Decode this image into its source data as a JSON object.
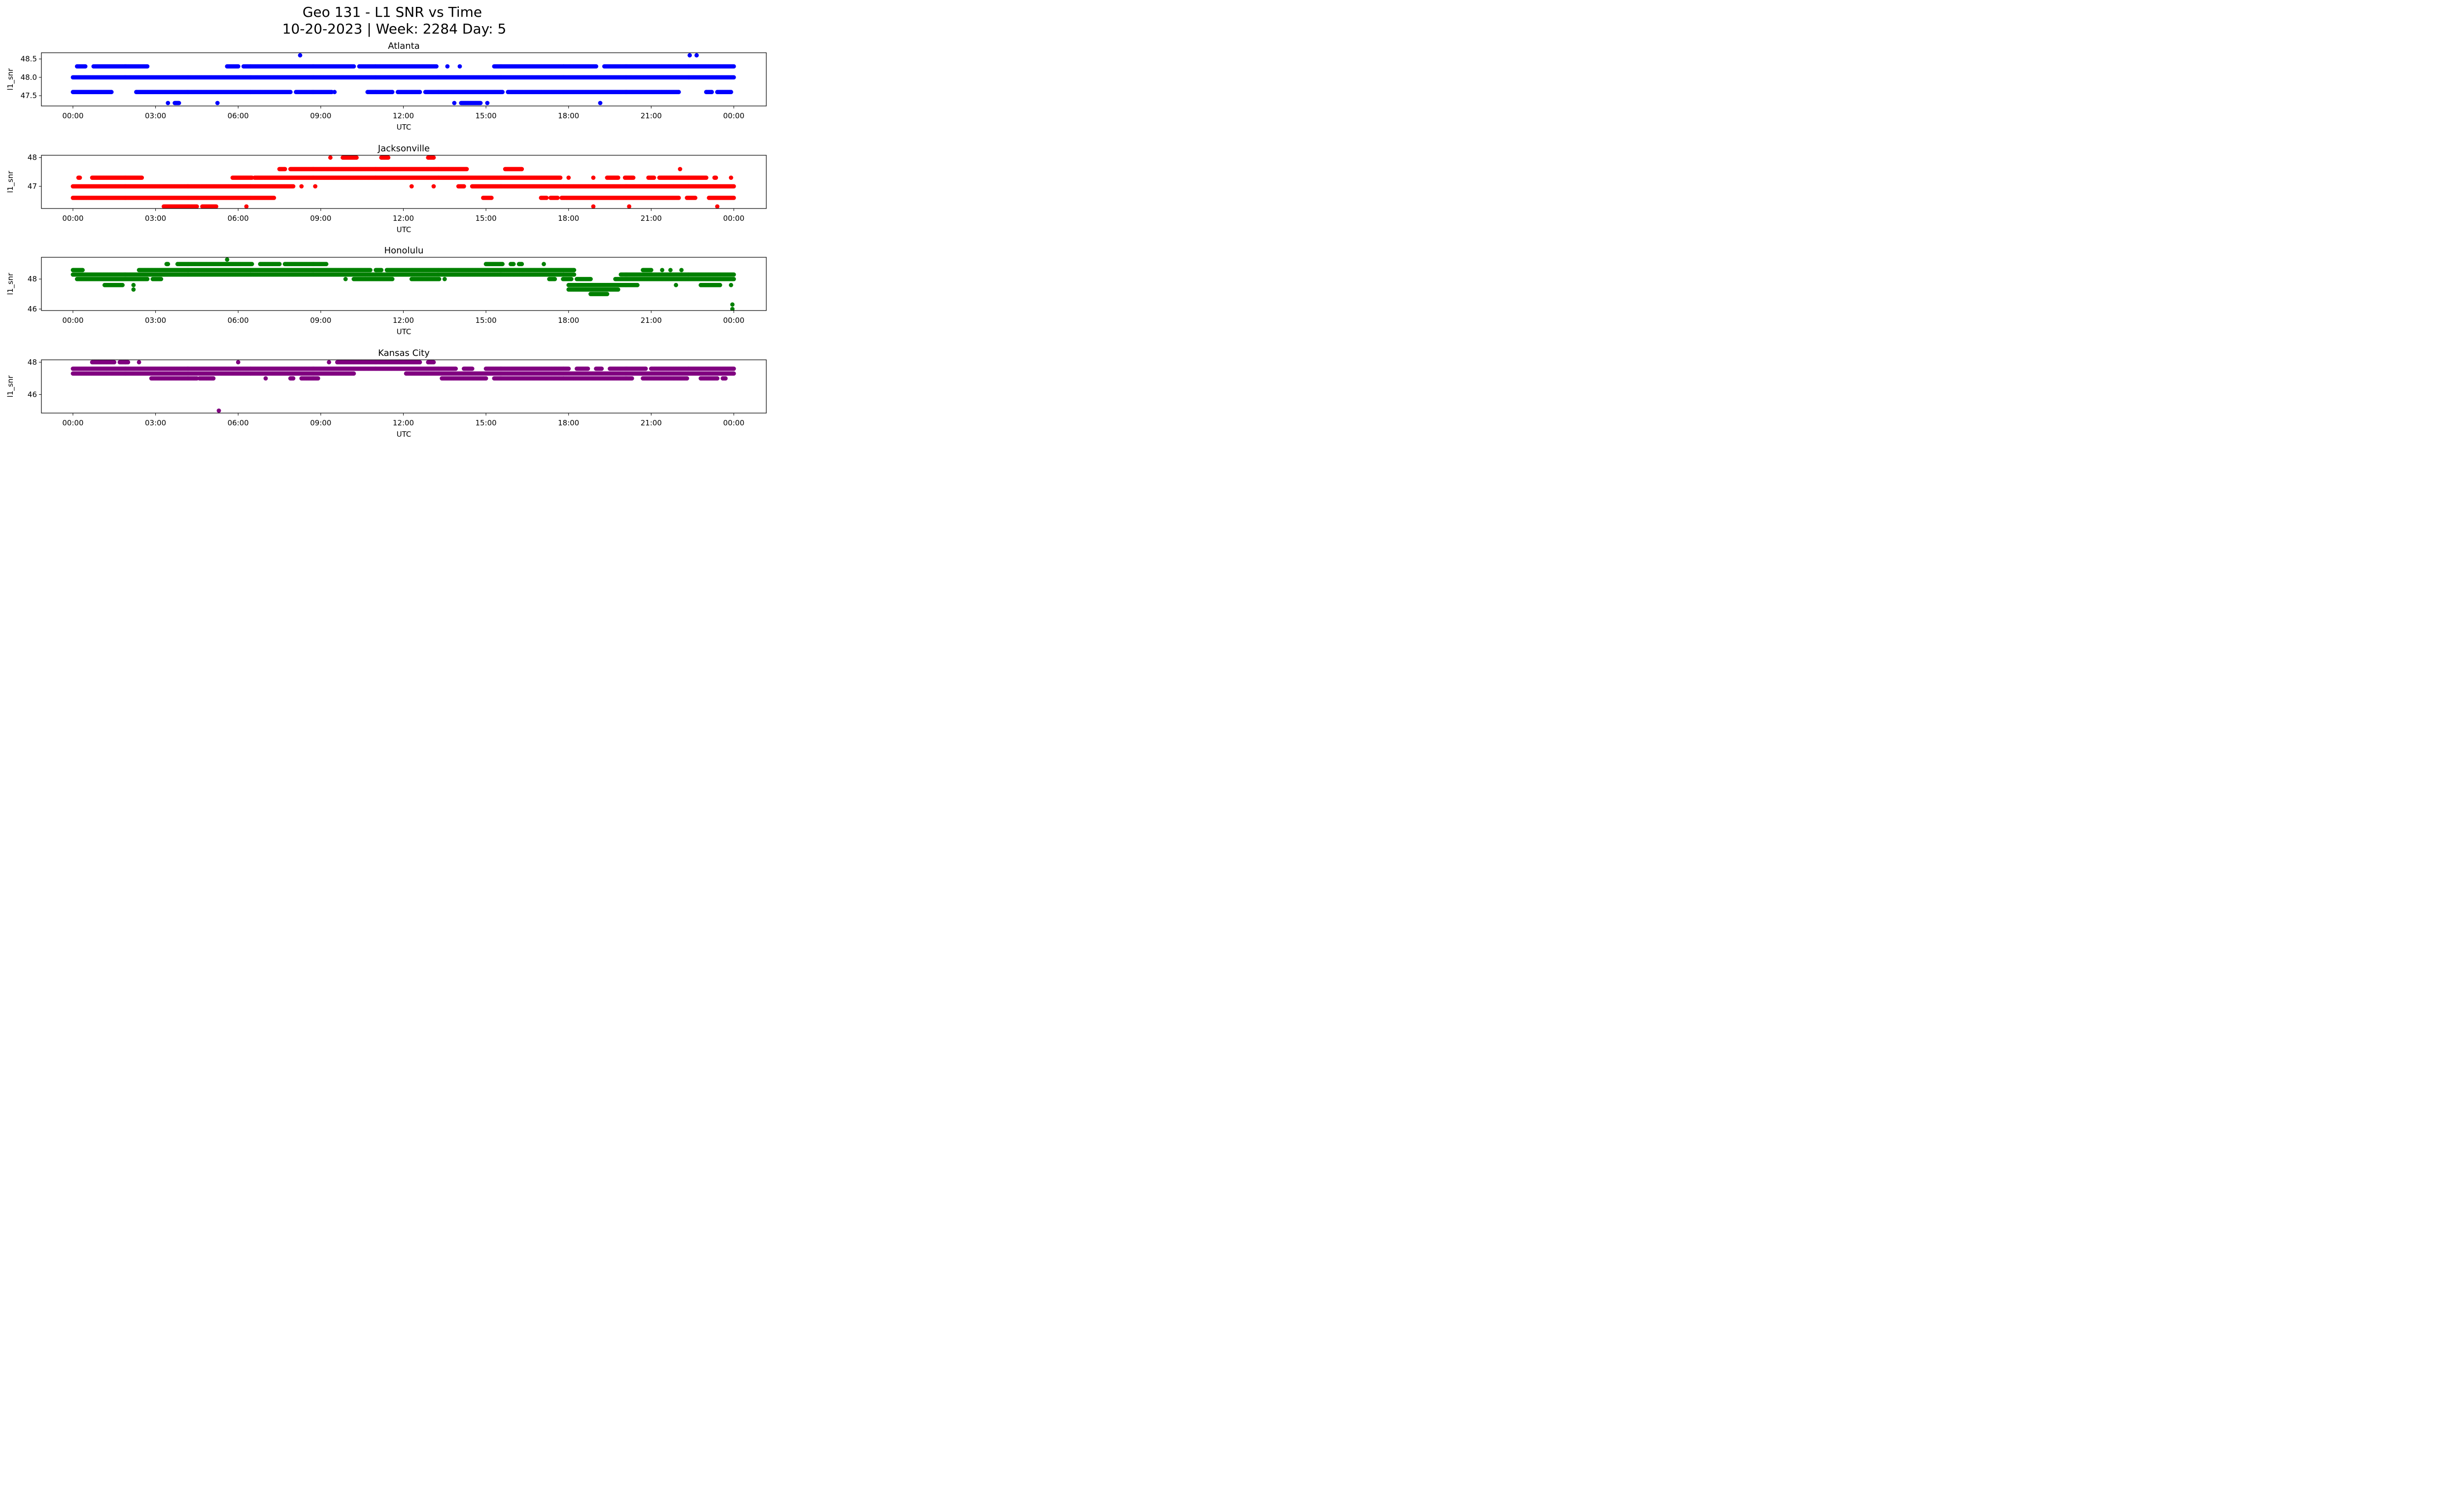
{
  "figure": {
    "title_line1": "Geo 131 - L1 SNR vs Time",
    "title_line2": "10-20-2023 | Week: 2284 Day: 5"
  },
  "chart_data": [
    {
      "type": "scatter",
      "title": "Atlanta",
      "xlabel": "UTC",
      "ylabel": "l1_snr",
      "color": "#0000ff",
      "xlim": [
        0,
        24
      ],
      "ylim": [
        47.22,
        48.67
      ],
      "x_ticks": [
        "00:00",
        "03:00",
        "06:00",
        "09:00",
        "12:00",
        "15:00",
        "18:00",
        "21:00",
        "00:00"
      ],
      "y_ticks": [
        47.5,
        48.0,
        48.5
      ],
      "y_tick_labels": [
        "47.5",
        "48.0",
        "48.5"
      ],
      "series": [
        {
          "y": 48.0,
          "ranges": [
            [
              0.0,
              24.0
            ]
          ]
        },
        {
          "y": 48.3,
          "ranges": [
            [
              0.15,
              0.45
            ],
            [
              0.75,
              2.7
            ],
            [
              5.6,
              6.0
            ],
            [
              6.2,
              10.2
            ],
            [
              10.4,
              13.2
            ],
            [
              13.6,
              13.6
            ],
            [
              14.05,
              14.05
            ],
            [
              15.3,
              19.0
            ],
            [
              19.3,
              24.0
            ]
          ]
        },
        {
          "y": 47.6,
          "ranges": [
            [
              0.0,
              1.4
            ],
            [
              2.3,
              7.9
            ],
            [
              8.1,
              9.4
            ],
            [
              9.5,
              9.5
            ],
            [
              10.7,
              11.6
            ],
            [
              11.8,
              12.6
            ],
            [
              12.8,
              15.6
            ],
            [
              15.8,
              22.0
            ],
            [
              23.0,
              23.2
            ],
            [
              23.4,
              23.9
            ]
          ]
        },
        {
          "y": 47.3,
          "ranges": [
            [
              3.45,
              3.45
            ],
            [
              3.7,
              3.85
            ],
            [
              5.25,
              5.25
            ],
            [
              13.85,
              13.85
            ],
            [
              14.1,
              14.8
            ],
            [
              15.05,
              15.05
            ],
            [
              19.15,
              19.15
            ]
          ]
        },
        {
          "y": 48.6,
          "ranges": [
            [
              8.25,
              8.25
            ],
            [
              22.4,
              22.4
            ],
            [
              22.65,
              22.65
            ]
          ]
        }
      ]
    },
    {
      "type": "scatter",
      "title": "Jacksonville",
      "xlabel": "UTC",
      "ylabel": "l1_snr",
      "color": "#ff0000",
      "xlim": [
        0,
        24
      ],
      "ylim": [
        46.23,
        48.08
      ],
      "x_ticks": [
        "00:00",
        "03:00",
        "06:00",
        "09:00",
        "12:00",
        "15:00",
        "18:00",
        "21:00",
        "00:00"
      ],
      "y_ticks": [
        47.0,
        48.0
      ],
      "y_tick_labels": [
        "47",
        "48"
      ],
      "series": [
        {
          "y": 47.0,
          "ranges": [
            [
              0.0,
              8.0
            ],
            [
              8.3,
              8.3
            ],
            [
              8.8,
              8.8
            ],
            [
              12.3,
              12.3
            ],
            [
              13.1,
              13.1
            ],
            [
              14.0,
              14.2
            ],
            [
              14.5,
              24.0
            ]
          ]
        },
        {
          "y": 46.6,
          "ranges": [
            [
              0.0,
              7.3
            ],
            [
              14.9,
              15.2
            ],
            [
              17.0,
              17.2
            ],
            [
              17.35,
              17.6
            ],
            [
              17.75,
              22.0
            ],
            [
              22.3,
              22.6
            ],
            [
              23.1,
              24.0
            ]
          ]
        },
        {
          "y": 47.3,
          "ranges": [
            [
              0.2,
              0.25
            ],
            [
              0.7,
              2.5
            ],
            [
              5.8,
              6.5
            ],
            [
              6.6,
              17.7
            ],
            [
              18.0,
              18.0
            ],
            [
              18.9,
              18.9
            ],
            [
              19.4,
              19.8
            ],
            [
              20.05,
              20.35
            ],
            [
              20.9,
              21.1
            ],
            [
              21.3,
              23.0
            ],
            [
              23.3,
              23.35
            ],
            [
              23.9,
              23.9
            ]
          ]
        },
        {
          "y": 47.6,
          "ranges": [
            [
              7.5,
              7.7
            ],
            [
              7.9,
              14.3
            ],
            [
              15.7,
              16.3
            ],
            [
              22.05,
              22.05
            ]
          ]
        },
        {
          "y": 46.3,
          "ranges": [
            [
              3.3,
              4.5
            ],
            [
              4.7,
              5.2
            ],
            [
              6.3,
              6.3
            ],
            [
              18.9,
              18.9
            ],
            [
              20.2,
              20.2
            ],
            [
              23.4,
              23.4
            ]
          ]
        },
        {
          "y": 48.0,
          "ranges": [
            [
              9.35,
              9.35
            ],
            [
              9.8,
              10.3
            ],
            [
              11.2,
              11.45
            ],
            [
              12.9,
              13.1
            ]
          ]
        }
      ]
    },
    {
      "type": "scatter",
      "title": "Honolulu",
      "xlabel": "UTC",
      "ylabel": "l1_snr",
      "color": "#008000",
      "xlim": [
        0,
        24
      ],
      "ylim": [
        45.9,
        49.45
      ],
      "x_ticks": [
        "00:00",
        "03:00",
        "06:00",
        "09:00",
        "12:00",
        "15:00",
        "18:00",
        "21:00",
        "00:00"
      ],
      "y_ticks": [
        46.0,
        48.0
      ],
      "y_tick_labels": [
        "46",
        "48"
      ],
      "series": [
        {
          "y": 48.3,
          "ranges": [
            [
              0.0,
              18.2
            ],
            [
              19.9,
              24.0
            ]
          ]
        },
        {
          "y": 48.0,
          "ranges": [
            [
              0.15,
              2.7
            ],
            [
              2.9,
              3.2
            ],
            [
              9.9,
              9.9
            ],
            [
              10.2,
              11.6
            ],
            [
              12.3,
              13.3
            ],
            [
              13.5,
              13.5
            ],
            [
              17.3,
              17.5
            ],
            [
              17.8,
              18.1
            ],
            [
              18.3,
              18.8
            ],
            [
              19.7,
              24.0
            ]
          ]
        },
        {
          "y": 48.6,
          "ranges": [
            [
              0.0,
              0.35
            ],
            [
              2.4,
              10.8
            ],
            [
              11.0,
              11.2
            ],
            [
              11.4,
              18.2
            ],
            [
              20.7,
              21.0
            ],
            [
              21.4,
              21.4
            ],
            [
              21.7,
              21.7
            ],
            [
              22.1,
              22.1
            ]
          ]
        },
        {
          "y": 49.0,
          "ranges": [
            [
              3.4,
              3.45
            ],
            [
              3.8,
              6.5
            ],
            [
              6.8,
              7.5
            ],
            [
              7.7,
              9.2
            ],
            [
              15.0,
              15.6
            ],
            [
              15.9,
              16.0
            ],
            [
              16.2,
              16.3
            ],
            [
              17.1,
              17.1
            ]
          ]
        },
        {
          "y": 47.6,
          "ranges": [
            [
              1.15,
              1.8
            ],
            [
              2.2,
              2.2
            ],
            [
              18.0,
              20.5
            ],
            [
              21.9,
              21.9
            ],
            [
              22.8,
              23.5
            ],
            [
              23.9,
              23.9
            ]
          ]
        },
        {
          "y": 47.3,
          "ranges": [
            [
              2.2,
              2.2
            ],
            [
              18.0,
              19.8
            ]
          ]
        },
        {
          "y": 47.0,
          "ranges": [
            [
              18.8,
              19.4
            ]
          ]
        },
        {
          "y": 49.3,
          "ranges": [
            [
              5.6,
              5.6
            ]
          ]
        },
        {
          "y": 46.3,
          "ranges": [
            [
              23.95,
              23.95
            ]
          ]
        },
        {
          "y": 46.0,
          "ranges": [
            [
              23.95,
              23.95
            ]
          ]
        }
      ]
    },
    {
      "type": "scatter",
      "title": "Kansas City",
      "xlabel": "UTC",
      "ylabel": "l1_snr",
      "color": "#800080",
      "xlim": [
        0,
        24
      ],
      "ylim": [
        44.85,
        48.15
      ],
      "x_ticks": [
        "00:00",
        "03:00",
        "06:00",
        "09:00",
        "12:00",
        "15:00",
        "18:00",
        "21:00",
        "00:00"
      ],
      "y_ticks": [
        46.0,
        48.0
      ],
      "y_tick_labels": [
        "46",
        "48"
      ],
      "series": [
        {
          "y": 47.6,
          "ranges": [
            [
              0.0,
              13.9
            ],
            [
              14.2,
              14.5
            ],
            [
              15.0,
              18.0
            ],
            [
              18.3,
              18.7
            ],
            [
              19.0,
              19.2
            ],
            [
              19.5,
              20.8
            ],
            [
              21.0,
              24.0
            ]
          ]
        },
        {
          "y": 47.3,
          "ranges": [
            [
              0.0,
              10.2
            ],
            [
              12.1,
              24.0
            ]
          ]
        },
        {
          "y": 47.0,
          "ranges": [
            [
              2.85,
              4.5
            ],
            [
              4.6,
              5.1
            ],
            [
              7.0,
              7.0
            ],
            [
              7.9,
              8.0
            ],
            [
              8.3,
              8.9
            ],
            [
              13.4,
              15.0
            ],
            [
              15.3,
              20.3
            ],
            [
              20.7,
              22.3
            ],
            [
              22.8,
              23.4
            ],
            [
              23.6,
              23.7
            ]
          ]
        },
        {
          "y": 48.0,
          "ranges": [
            [
              0.7,
              1.5
            ],
            [
              1.7,
              2.0
            ],
            [
              2.4,
              2.4
            ],
            [
              6.0,
              6.0
            ],
            [
              9.3,
              9.3
            ],
            [
              9.6,
              12.6
            ],
            [
              12.9,
              13.1
            ]
          ]
        },
        {
          "y": 45.0,
          "ranges": [
            [
              5.3,
              5.3
            ]
          ]
        }
      ]
    }
  ]
}
